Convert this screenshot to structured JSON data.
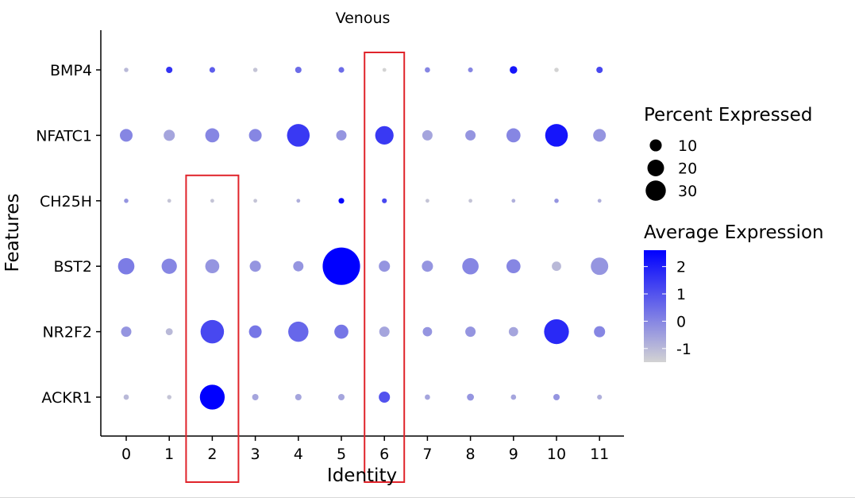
{
  "chart_data": {
    "type": "dotplot",
    "title": "Venous",
    "xlabel": "Identity",
    "ylabel": "Features",
    "x_categories": [
      "0",
      "1",
      "2",
      "3",
      "4",
      "5",
      "6",
      "7",
      "8",
      "9",
      "10",
      "11"
    ],
    "features": [
      "BMP4",
      "NFATC1",
      "CH25H",
      "BST2",
      "NR2F2",
      "ACKR1"
    ],
    "percent_expressed": [
      [
        0.3,
        0.8,
        0.6,
        0.3,
        0.8,
        0.6,
        0.2,
        0.5,
        0.4,
        1.2,
        0.3,
        0.8
      ],
      [
        4,
        3,
        5,
        4,
        14,
        2.5,
        9,
        2.5,
        2.5,
        5,
        14,
        4
      ],
      [
        0.3,
        0.2,
        0.2,
        0.2,
        0.2,
        0.6,
        0.4,
        0.2,
        0.2,
        0.2,
        0.3,
        0.2
      ],
      [
        7,
        6,
        5,
        3,
        2.5,
        40,
        3,
        3,
        7,
        5,
        2,
        8
      ],
      [
        2.5,
        1,
        15,
        4,
        11,
        5,
        2.5,
        2,
        2.5,
        2,
        17,
        3
      ],
      [
        0.5,
        0.3,
        17,
        0.8,
        0.8,
        0.8,
        3,
        0.5,
        1,
        0.5,
        0.8,
        0.4
      ]
    ],
    "average_expression": [
      [
        -1,
        1.6,
        0.8,
        -1.2,
        0.5,
        0.5,
        -1.5,
        0,
        0,
        2.2,
        -1.5,
        1.2
      ],
      [
        0,
        -0.6,
        0,
        0,
        1.5,
        -0.3,
        1.5,
        -0.6,
        -0.3,
        0,
        2.2,
        -0.3
      ],
      [
        -0.3,
        -1.2,
        -1.2,
        -1.2,
        -0.8,
        2.5,
        1.2,
        -1.2,
        -1.2,
        -0.8,
        -0.3,
        -0.8
      ],
      [
        0.2,
        0,
        -0.3,
        -0.3,
        -0.3,
        2.6,
        -0.3,
        -0.3,
        0,
        0,
        -1,
        -0.3
      ],
      [
        -0.3,
        -1,
        1.2,
        0.3,
        0.6,
        0.3,
        -0.6,
        -0.3,
        -0.3,
        -0.6,
        1.8,
        0
      ],
      [
        -1,
        -1.2,
        2.6,
        -0.6,
        -0.6,
        -0.6,
        1,
        -0.6,
        -0.3,
        -0.6,
        -0.3,
        -0.8
      ]
    ],
    "size_legend": {
      "title": "Percent Expressed",
      "values": [
        10,
        20,
        30
      ],
      "labels": [
        "10",
        "20",
        "30"
      ]
    },
    "color_legend": {
      "title": "Average Expression",
      "ticks": [
        2,
        1,
        0,
        -1
      ],
      "labels": [
        "2",
        "1",
        "0",
        "-1"
      ],
      "min": -1.5,
      "max": 2.6,
      "low_color": "#d3d3d3",
      "high_color": "#0000ff"
    },
    "highlight_boxes": [
      {
        "categories": [
          "2"
        ],
        "features": [
          "CH25H",
          "BST2",
          "NR2F2",
          "ACKR1"
        ],
        "color": "#e0242b"
      },
      {
        "categories": [
          "6"
        ],
        "features": [
          "BMP4",
          "NFATC1",
          "CH25H",
          "BST2",
          "NR2F2",
          "ACKR1"
        ],
        "color": "#e0242b"
      }
    ],
    "legend_position": "right",
    "grid": false
  }
}
